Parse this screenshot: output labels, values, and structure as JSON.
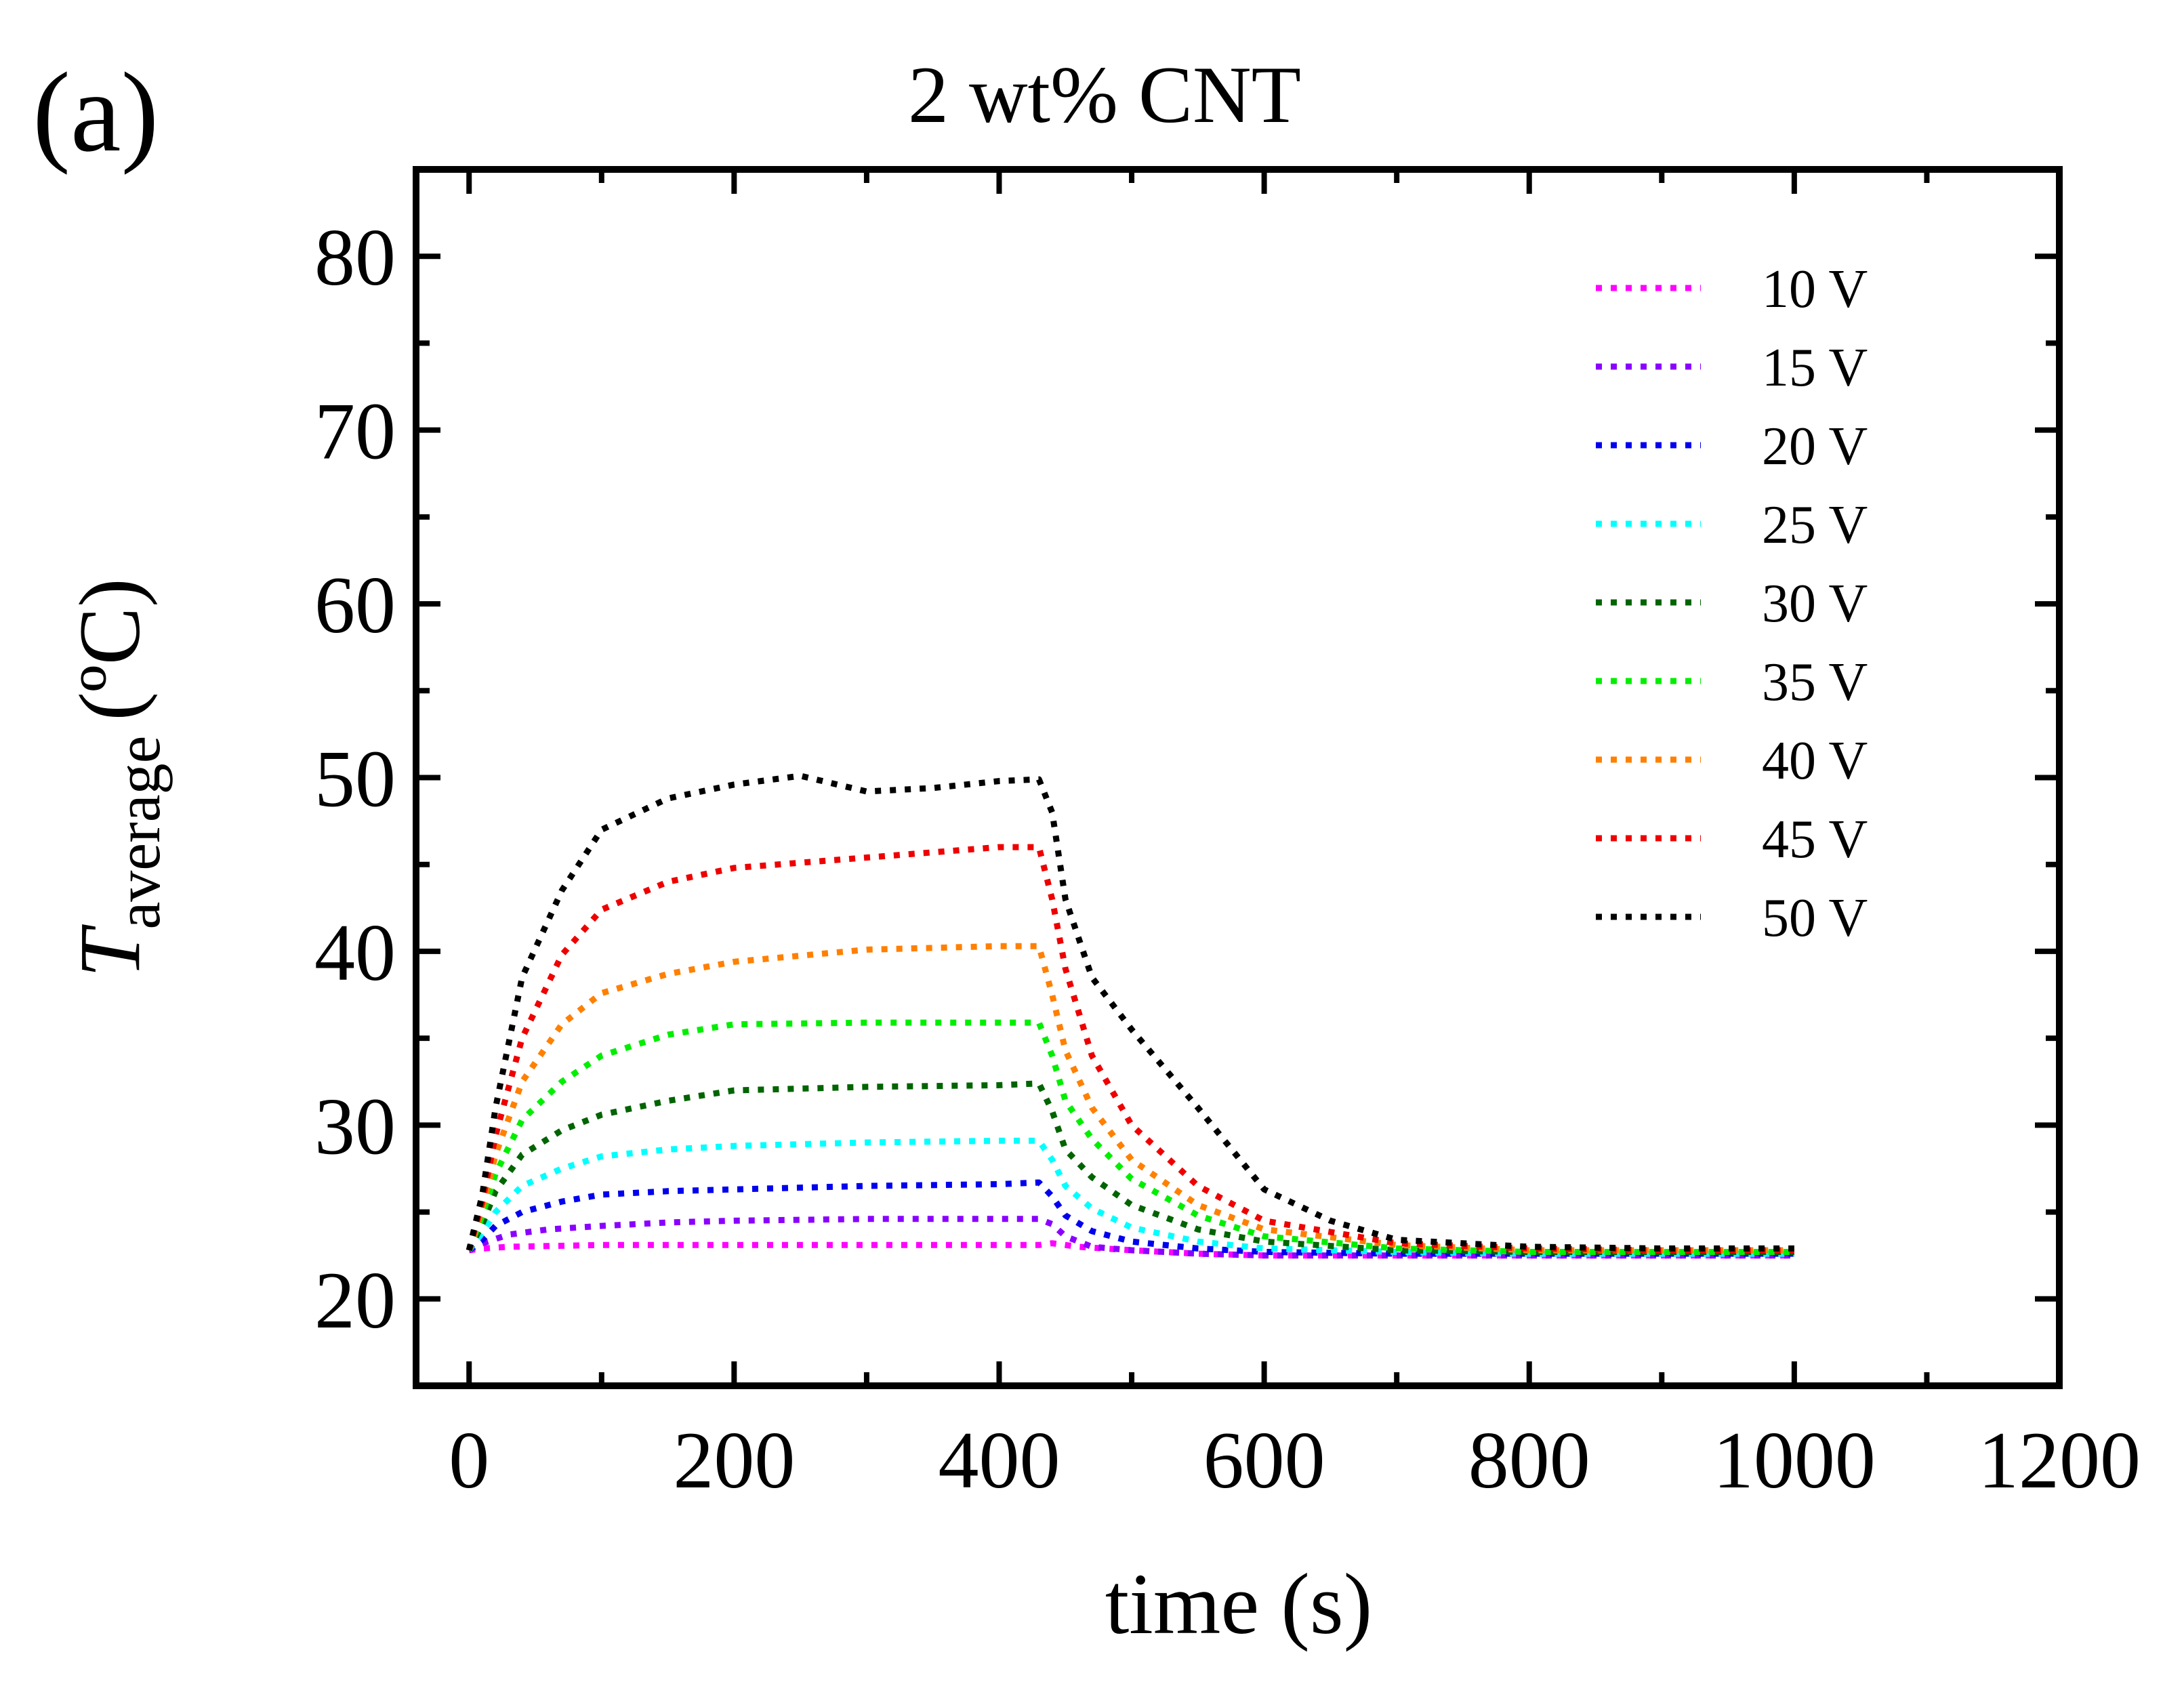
{
  "panel_label": "(a)",
  "chart_data": {
    "type": "line",
    "title": "2 wt% CNT",
    "xlabel": "time (s)",
    "ylabel_symbol": "T",
    "ylabel_subscript": "average",
    "ylabel_unit": "(ºC)",
    "xlim": [
      -40,
      1200
    ],
    "ylim": [
      15,
      85
    ],
    "xticks": [
      0,
      200,
      400,
      600,
      800,
      1000,
      1200
    ],
    "yticks": [
      20,
      30,
      40,
      50,
      60,
      70,
      80
    ],
    "xtick_labels": [
      "0",
      "200",
      "400",
      "600",
      "800",
      "1000",
      "1200"
    ],
    "ytick_labels": [
      "20",
      "30",
      "40",
      "50",
      "60",
      "70",
      "80"
    ],
    "legend_position": "top-right",
    "series": [
      {
        "name": "10 V",
        "color": "#ff00ff",
        "x": [
          0,
          10,
          30,
          100,
          200,
          300,
          400,
          430,
          440,
          460,
          500,
          550,
          600,
          700,
          800,
          900,
          1000
        ],
        "y": [
          22.8,
          22.9,
          23.0,
          23.1,
          23.1,
          23.1,
          23.1,
          23.1,
          23.2,
          23.0,
          22.8,
          22.6,
          22.5,
          22.5,
          22.5,
          22.5,
          22.5
        ]
      },
      {
        "name": "15 V",
        "color": "#8a00ff",
        "x": [
          0,
          10,
          30,
          60,
          100,
          150,
          200,
          300,
          400,
          430,
          440,
          450,
          470,
          500,
          550,
          600,
          700,
          800,
          900,
          1000
        ],
        "y": [
          22.8,
          23.2,
          23.7,
          24.0,
          24.2,
          24.4,
          24.5,
          24.6,
          24.6,
          24.6,
          24.3,
          23.6,
          23.0,
          22.8,
          22.6,
          22.5,
          22.5,
          22.5,
          22.5,
          22.5
        ]
      },
      {
        "name": "20 V",
        "color": "#0000ee",
        "x": [
          0,
          10,
          20,
          40,
          70,
          100,
          150,
          200,
          300,
          400,
          430,
          440,
          450,
          470,
          500,
          550,
          600,
          700,
          800,
          900,
          1000
        ],
        "y": [
          22.8,
          23.4,
          24.2,
          25.0,
          25.6,
          26.0,
          26.2,
          26.3,
          26.5,
          26.6,
          26.7,
          25.9,
          24.8,
          23.9,
          23.3,
          22.9,
          22.7,
          22.6,
          22.6,
          22.6,
          22.6
        ]
      },
      {
        "name": "25 V",
        "color": "#00ffff",
        "x": [
          0,
          10,
          20,
          40,
          70,
          100,
          150,
          200,
          300,
          400,
          430,
          440,
          450,
          470,
          500,
          550,
          600,
          700,
          800,
          900,
          1000
        ],
        "y": [
          22.8,
          23.8,
          25.0,
          26.5,
          27.5,
          28.2,
          28.6,
          28.8,
          29.0,
          29.1,
          29.1,
          28.0,
          26.5,
          25.2,
          24.1,
          23.3,
          22.9,
          22.7,
          22.6,
          22.6,
          22.6
        ]
      },
      {
        "name": "30 V",
        "color": "#006400",
        "x": [
          0,
          10,
          20,
          40,
          70,
          100,
          150,
          200,
          300,
          400,
          430,
          440,
          450,
          470,
          500,
          550,
          600,
          700,
          800,
          900,
          1000
        ],
        "y": [
          22.8,
          24.3,
          26.2,
          28.3,
          29.7,
          30.6,
          31.4,
          32.0,
          32.2,
          32.3,
          32.4,
          30.8,
          28.6,
          27.0,
          25.4,
          24.0,
          23.3,
          22.8,
          22.7,
          22.7,
          22.7
        ]
      },
      {
        "name": "35 V",
        "color": "#00ee00",
        "x": [
          0,
          10,
          20,
          40,
          70,
          100,
          150,
          200,
          300,
          400,
          430,
          440,
          450,
          470,
          500,
          550,
          600,
          700,
          800,
          900,
          1000
        ],
        "y": [
          22.8,
          24.8,
          27.2,
          30.3,
          32.5,
          34.0,
          35.2,
          35.8,
          35.9,
          35.9,
          35.9,
          34.0,
          31.4,
          29.2,
          26.9,
          24.8,
          23.6,
          22.9,
          22.7,
          22.7,
          22.7
        ]
      },
      {
        "name": "40 V",
        "color": "#ff8000",
        "x": [
          0,
          10,
          20,
          40,
          70,
          100,
          150,
          200,
          300,
          400,
          430,
          440,
          450,
          470,
          500,
          550,
          600,
          700,
          800,
          900,
          1000
        ],
        "y": [
          22.8,
          25.2,
          28.3,
          32.5,
          35.8,
          37.6,
          38.7,
          39.4,
          40.1,
          40.3,
          40.3,
          37.5,
          34.3,
          31.0,
          28.0,
          25.4,
          24.0,
          23.1,
          22.8,
          22.8,
          22.8
        ]
      },
      {
        "name": "45 V",
        "color": "#ee0000",
        "x": [
          0,
          10,
          20,
          40,
          70,
          100,
          150,
          200,
          300,
          400,
          430,
          440,
          450,
          470,
          500,
          550,
          600,
          700,
          800,
          900,
          1000
        ],
        "y": [
          22.8,
          25.6,
          29.4,
          35.0,
          39.8,
          42.4,
          44.0,
          44.8,
          45.4,
          46.0,
          46.0,
          43.0,
          39.0,
          34.0,
          30.0,
          26.5,
          24.5,
          23.2,
          22.9,
          22.8,
          22.8
        ]
      },
      {
        "name": "50 V",
        "color": "#000000",
        "x": [
          0,
          10,
          20,
          40,
          70,
          100,
          150,
          200,
          250,
          300,
          350,
          400,
          430,
          440,
          450,
          470,
          500,
          550,
          600,
          650,
          700,
          800,
          900,
          1000
        ],
        "y": [
          22.8,
          26.0,
          31.0,
          38.5,
          43.5,
          47.0,
          48.8,
          49.6,
          50.1,
          49.2,
          49.4,
          49.8,
          49.9,
          48.0,
          43.0,
          38.5,
          35.5,
          31.0,
          26.3,
          24.5,
          23.4,
          23.0,
          22.9,
          22.9
        ]
      }
    ]
  }
}
